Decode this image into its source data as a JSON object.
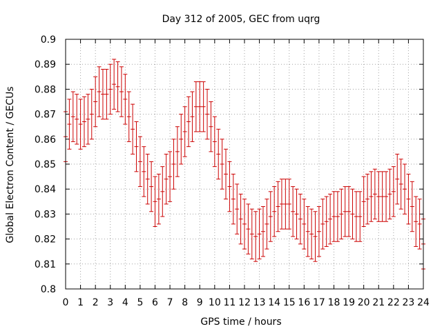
{
  "chart_data": {
    "type": "scatter",
    "title": "Day 312 of 2005, GEC from uqrg",
    "xlabel": "GPS time / hours",
    "ylabel": "Global Electron Content / GECUs",
    "xlim": [
      0,
      24
    ],
    "ylim": [
      0.8,
      0.9
    ],
    "xticks": [
      "0",
      "1",
      "2",
      "3",
      "4",
      "5",
      "6",
      "7",
      "8",
      "9",
      "10",
      "11",
      "12",
      "13",
      "14",
      "15",
      "16",
      "17",
      "18",
      "19",
      "20",
      "21",
      "22",
      "23",
      "24"
    ],
    "yticks": [
      "0.8",
      "0.81",
      "0.82",
      "0.83",
      "0.84",
      "0.85",
      "0.86",
      "0.87",
      "0.88",
      "0.89",
      "0.9"
    ],
    "grid": true,
    "series": [
      {
        "color": "#cc0000",
        "error": 0.01,
        "x": [
          0,
          0.25,
          0.5,
          0.75,
          1,
          1.25,
          1.5,
          1.75,
          2,
          2.25,
          2.5,
          2.75,
          3,
          3.25,
          3.5,
          3.75,
          4,
          4.25,
          4.5,
          4.75,
          5,
          5.25,
          5.5,
          5.75,
          6,
          6.25,
          6.5,
          6.75,
          7,
          7.25,
          7.5,
          7.75,
          8,
          8.25,
          8.5,
          8.75,
          9,
          9.25,
          9.5,
          9.75,
          10,
          10.25,
          10.5,
          10.75,
          11,
          11.25,
          11.5,
          11.75,
          12,
          12.25,
          12.5,
          12.75,
          13,
          13.25,
          13.5,
          13.75,
          14,
          14.25,
          14.5,
          14.75,
          15,
          15.25,
          15.5,
          15.75,
          16,
          16.25,
          16.5,
          16.75,
          17,
          17.25,
          17.5,
          17.75,
          18,
          18.25,
          18.5,
          18.75,
          19,
          19.25,
          19.5,
          19.75,
          20,
          20.25,
          20.5,
          20.75,
          21,
          21.25,
          21.5,
          21.75,
          22,
          22.25,
          22.5,
          22.75,
          23,
          23.25,
          23.5,
          23.75,
          24
        ],
        "y": [
          0.861,
          0.866,
          0.869,
          0.868,
          0.866,
          0.867,
          0.868,
          0.87,
          0.875,
          0.879,
          0.878,
          0.878,
          0.88,
          0.882,
          0.881,
          0.879,
          0.876,
          0.869,
          0.864,
          0.857,
          0.851,
          0.847,
          0.844,
          0.841,
          0.835,
          0.836,
          0.839,
          0.844,
          0.845,
          0.85,
          0.855,
          0.86,
          0.863,
          0.867,
          0.869,
          0.873,
          0.873,
          0.873,
          0.87,
          0.865,
          0.859,
          0.854,
          0.85,
          0.846,
          0.841,
          0.836,
          0.832,
          0.828,
          0.826,
          0.824,
          0.822,
          0.821,
          0.822,
          0.823,
          0.826,
          0.829,
          0.831,
          0.833,
          0.834,
          0.834,
          0.834,
          0.831,
          0.83,
          0.828,
          0.826,
          0.823,
          0.822,
          0.821,
          0.823,
          0.826,
          0.827,
          0.828,
          0.829,
          0.829,
          0.83,
          0.831,
          0.831,
          0.83,
          0.829,
          0.829,
          0.835,
          0.836,
          0.837,
          0.838,
          0.837,
          0.837,
          0.837,
          0.838,
          0.839,
          0.844,
          0.842,
          0.84,
          0.836,
          0.833,
          0.827,
          0.826,
          0.818
        ]
      }
    ]
  }
}
